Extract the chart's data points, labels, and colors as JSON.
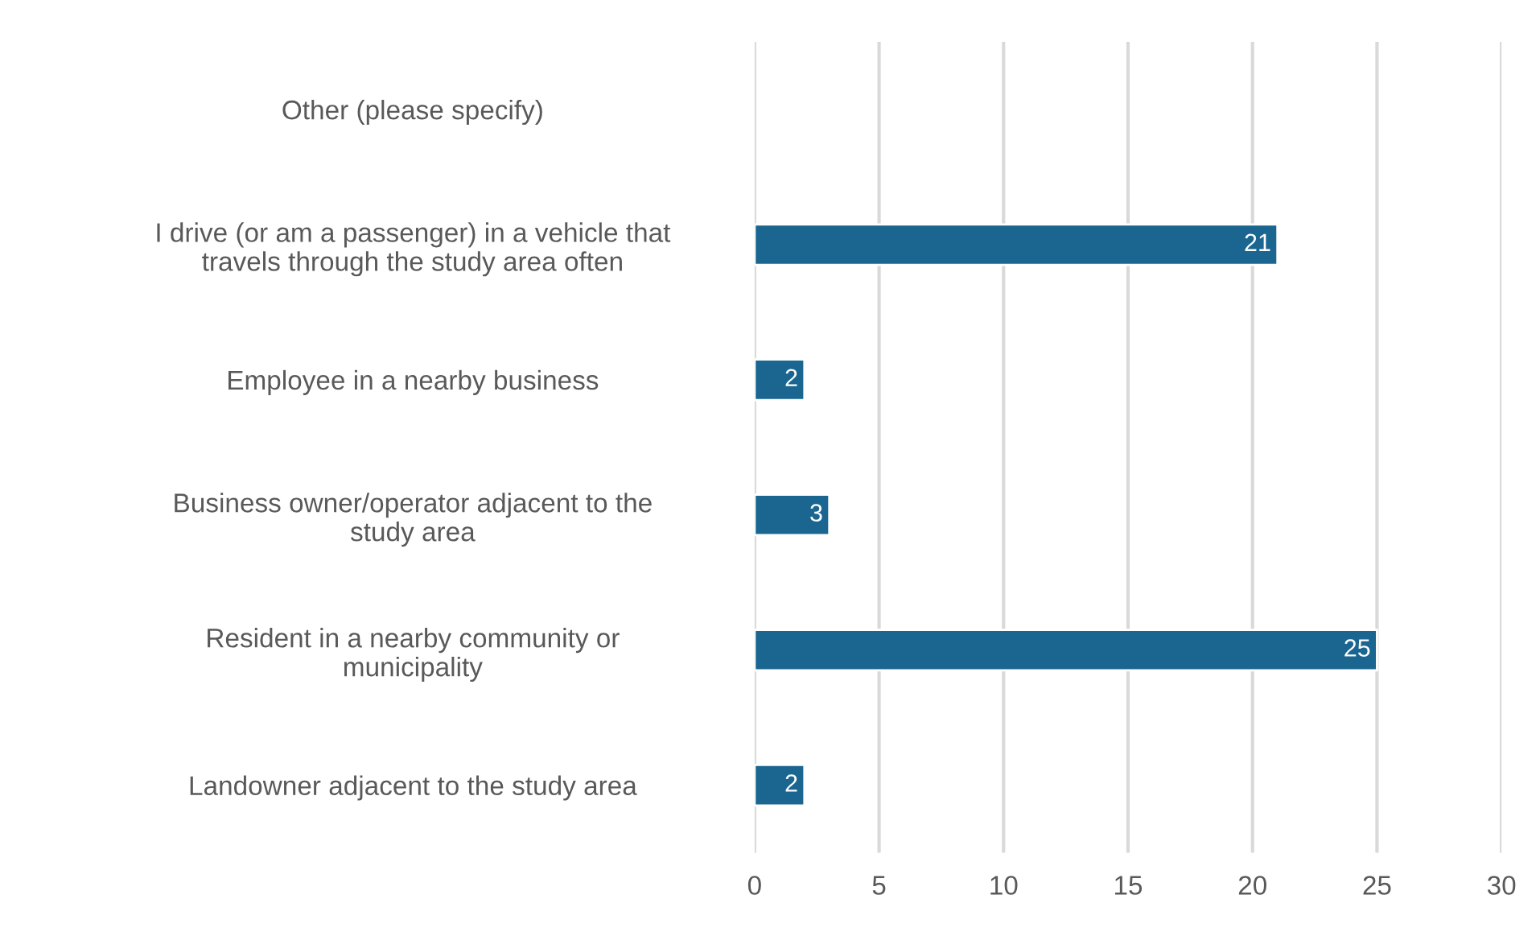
{
  "chart_data": {
    "type": "bar",
    "orientation": "horizontal",
    "categories": [
      "Other (please specify)",
      "I drive (or am a passenger) in a vehicle that\ntravels through the study area often",
      "Employee in a nearby business",
      "Business owner/operator adjacent to the\nstudy area",
      "Resident in a nearby community or\nmunicipality",
      "Landowner adjacent to the study area"
    ],
    "values": [
      null,
      21,
      2,
      3,
      25,
      2
    ],
    "color": "#1a6690",
    "xlim": [
      0,
      30
    ],
    "xticks": [
      0,
      5,
      10,
      15,
      20,
      25,
      30
    ],
    "grid": "x",
    "data_labels": true
  }
}
